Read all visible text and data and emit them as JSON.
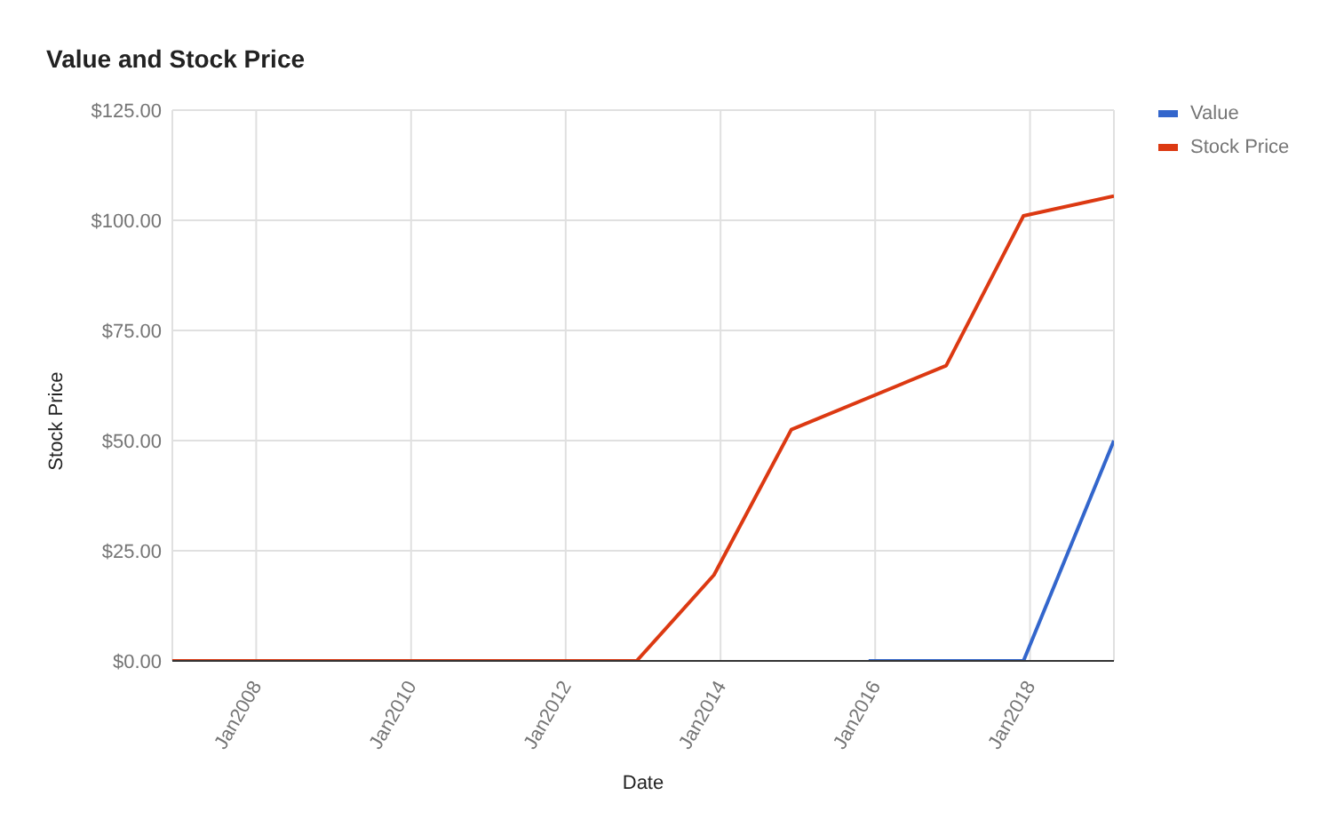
{
  "chart_data": {
    "type": "line",
    "title": "Value and Stock Price",
    "xlabel": "Date",
    "ylabel": "Stock Price",
    "xlim": [
      "2006-12",
      "2019-02"
    ],
    "xticks": [
      {
        "value": "2008-01",
        "label": "Jan2008"
      },
      {
        "value": "2010-01",
        "label": "Jan2010"
      },
      {
        "value": "2012-01",
        "label": "Jan2012"
      },
      {
        "value": "2014-01",
        "label": "Jan2014"
      },
      {
        "value": "2016-01",
        "label": "Jan2016"
      },
      {
        "value": "2018-01",
        "label": "Jan2018"
      }
    ],
    "ylim": [
      0,
      125
    ],
    "yticks": [
      {
        "value": 0,
        "label": "$0.00"
      },
      {
        "value": 25,
        "label": "$25.00"
      },
      {
        "value": 50,
        "label": "$50.00"
      },
      {
        "value": 75,
        "label": "$75.00"
      },
      {
        "value": 100,
        "label": "$100.00"
      },
      {
        "value": 125,
        "label": "$125.00"
      }
    ],
    "grid": true,
    "legend": "top right",
    "series": [
      {
        "name": "Value",
        "color": "#3366cc",
        "x": [
          "2015-12",
          "2016-12",
          "2017-12",
          "2019-02"
        ],
        "values": [
          0,
          0,
          0,
          50
        ]
      },
      {
        "name": "Stock Price",
        "color": "#dc3912",
        "x": [
          "2006-12",
          "2007-12",
          "2008-12",
          "2009-12",
          "2010-12",
          "2011-12",
          "2012-12",
          "2013-12",
          "2014-12",
          "2016-12",
          "2017-12",
          "2019-02"
        ],
        "values": [
          0,
          0,
          0,
          0,
          0,
          0,
          0,
          19.5,
          52.5,
          67,
          101,
          105.5
        ]
      }
    ]
  }
}
